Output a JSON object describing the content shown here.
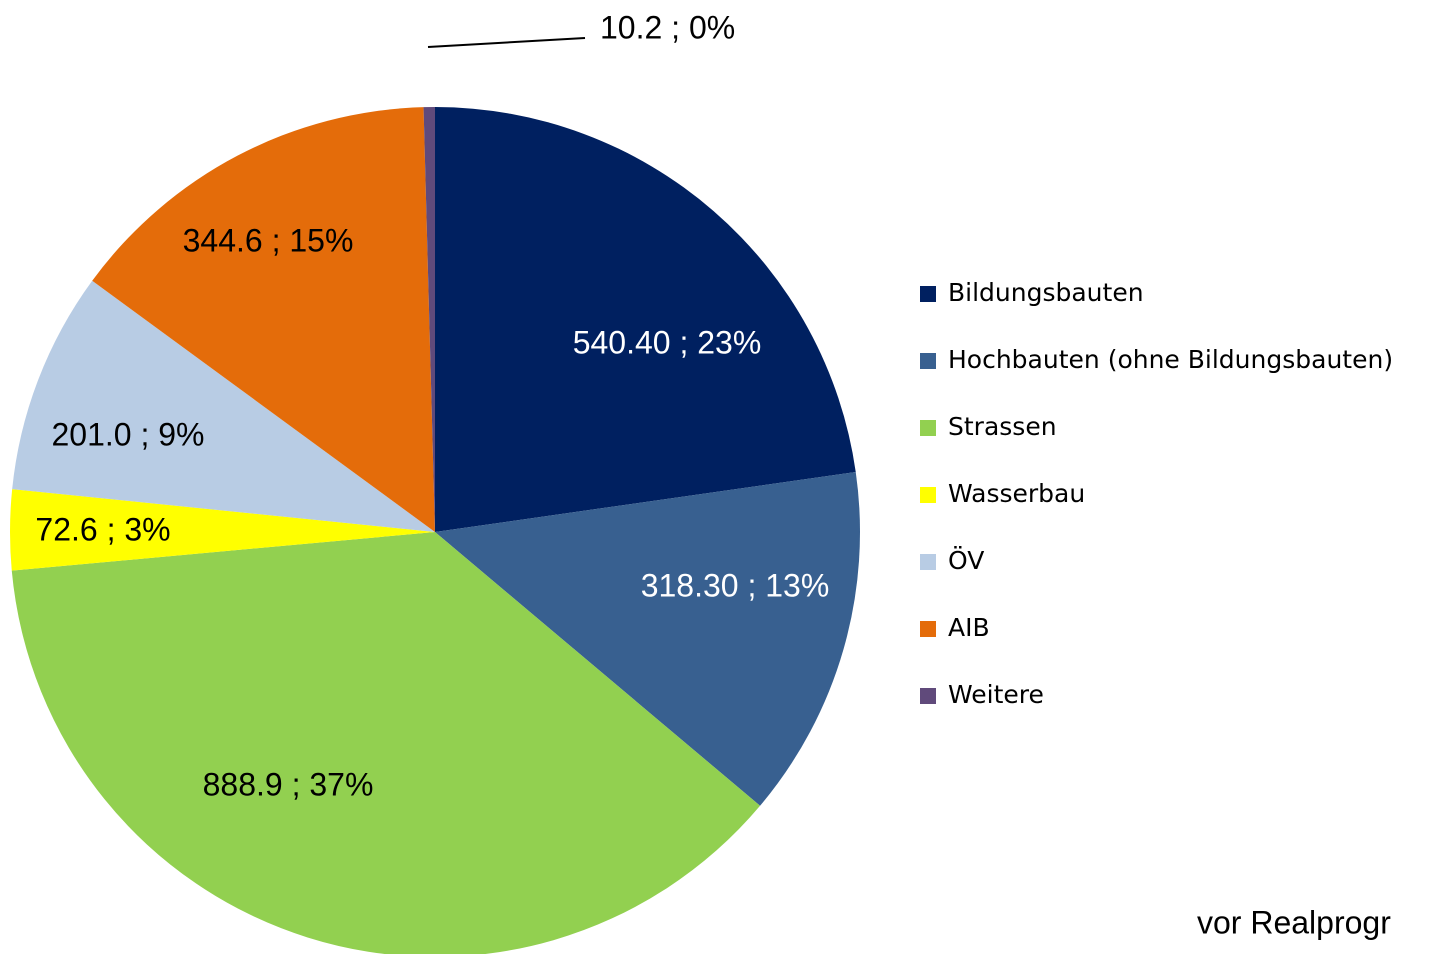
{
  "chart_data": {
    "type": "pie",
    "categories": [
      "Bildungsbauten",
      "Hochbauten (ohne Bildungsbauten)",
      "Strassen",
      "Wasserbau",
      "ÖV",
      "AIB",
      "Weitere"
    ],
    "values": [
      540.4,
      318.3,
      888.9,
      72.6,
      201.0,
      344.6,
      10.2
    ],
    "value_labels": [
      "540.40 ; 23%",
      "318.30 ; 13%",
      "888.9 ; 37%",
      "72.6 ; 3%",
      "201.0 ; 9%",
      "344.6 ; 15%",
      "10.2 ; 0%"
    ],
    "colors": [
      "#002060",
      "#386090",
      "#92d050",
      "#ffff00",
      "#b8cce4",
      "#e46c0a",
      "#604a7b"
    ],
    "legend": "right",
    "annotation": "vor Realprogr"
  }
}
